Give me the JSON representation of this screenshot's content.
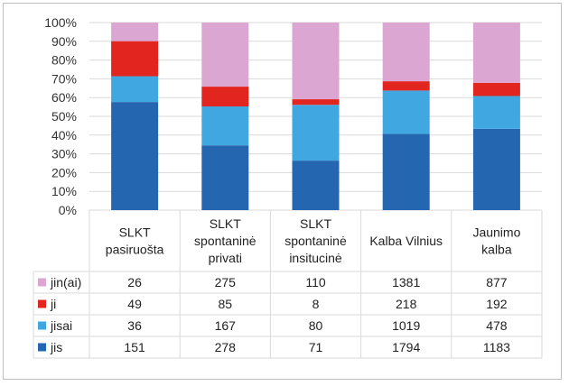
{
  "chart_data": {
    "type": "bar",
    "stacked": "percent",
    "categories": [
      [
        "SLKT",
        "pasiruošta"
      ],
      [
        "SLKT",
        "spontaninė",
        "privati"
      ],
      [
        "SLKT",
        "spontaninė",
        "insitucinė"
      ],
      [
        "Kalba Vilnius"
      ],
      [
        "Jaunimo",
        "kalba"
      ]
    ],
    "series": [
      {
        "name": "jin(ai)",
        "color": "#dca6d2",
        "values": [
          26,
          275,
          110,
          1381,
          877
        ]
      },
      {
        "name": "ji",
        "color": "#e3251f",
        "values": [
          49,
          85,
          8,
          218,
          192
        ]
      },
      {
        "name": "jisai",
        "color": "#41a7e1",
        "values": [
          36,
          167,
          80,
          1019,
          478
        ]
      },
      {
        "name": "jis",
        "color": "#2566b0",
        "values": [
          151,
          278,
          71,
          1794,
          1183
        ]
      }
    ],
    "yticks": [
      "0%",
      "10%",
      "20%",
      "30%",
      "40%",
      "50%",
      "60%",
      "70%",
      "80%",
      "90%",
      "100%"
    ],
    "ylim": [
      0,
      100
    ],
    "legend": "data table with legend keys"
  }
}
